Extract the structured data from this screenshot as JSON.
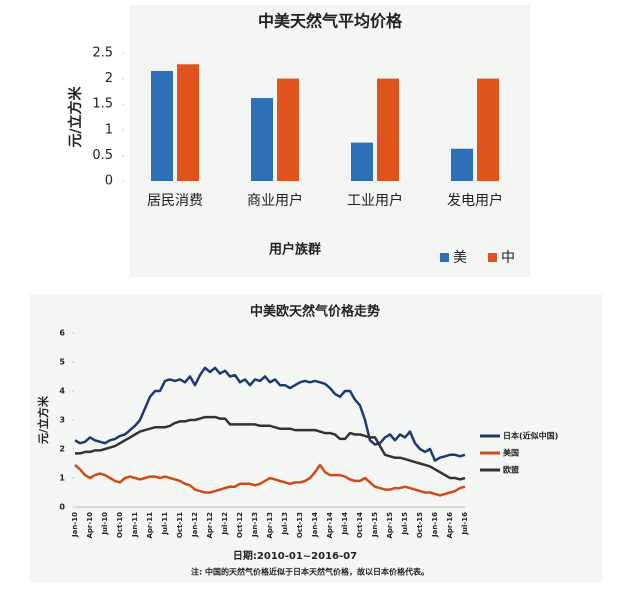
{
  "chart_data": [
    {
      "type": "bar",
      "title": "中美天然气平均价格",
      "x_label": "用户族群",
      "y_label": "元/立方米",
      "categories": [
        "居民消费",
        "商业用户",
        "工业用户",
        "发电用户"
      ],
      "series": [
        {
          "name": "美",
          "color": "#2e6fb7",
          "values": [
            2.15,
            1.62,
            0.75,
            0.63
          ]
        },
        {
          "name": "中",
          "color": "#e0531c",
          "values": [
            2.28,
            2.0,
            2.0,
            2.0
          ]
        }
      ],
      "ylim": [
        0,
        2.5
      ],
      "yticks": [
        0,
        0.5,
        1,
        1.5,
        2,
        2.5
      ],
      "legend": "bottom-right"
    },
    {
      "type": "line",
      "title": "中美欧天然气价格走势",
      "x_label": "日期:2010-01~2016-07",
      "y_label": "元/立方米",
      "note": "注: 中国的天然气价格近似于日本天然气价格，故以日本价格代表。",
      "categories": [
        "Jan-10",
        null,
        null,
        "Apr-10",
        null,
        null,
        "Jul-10",
        null,
        null,
        "Oct-10",
        null,
        null,
        "Jan-11",
        null,
        null,
        "Apr-11",
        null,
        null,
        "Jul-11",
        null,
        null,
        "Oct-11",
        null,
        null,
        "Jan-12",
        null,
        null,
        "Apr-12",
        null,
        null,
        "Jul-12",
        null,
        null,
        "Oct-12",
        null,
        null,
        "Jan-13",
        null,
        null,
        "Apr-13",
        null,
        null,
        "Jul-13",
        null,
        null,
        "Oct-13",
        null,
        null,
        "Jan-14",
        null,
        null,
        "Apr-14",
        null,
        null,
        "Jul-14",
        null,
        null,
        "Oct-14",
        null,
        null,
        "Jan-15",
        null,
        null,
        "Apr-15",
        null,
        null,
        "Jul-15",
        null,
        null,
        "Oct-15",
        null,
        null,
        "Jan-16",
        null,
        null,
        "Apr-16",
        null,
        null,
        "Jul-16"
      ],
      "series": [
        {
          "name": "日本(近似中国)",
          "color": "#1f3a73",
          "values": [
            2.3,
            2.2,
            2.25,
            2.4,
            2.3,
            2.25,
            2.2,
            2.3,
            2.35,
            2.45,
            2.5,
            2.65,
            2.8,
            3.0,
            3.4,
            3.8,
            4.0,
            4.0,
            4.35,
            4.4,
            4.35,
            4.4,
            4.3,
            4.5,
            4.2,
            4.55,
            4.8,
            4.65,
            4.8,
            4.6,
            4.7,
            4.5,
            4.55,
            4.3,
            4.4,
            4.2,
            4.4,
            4.35,
            4.5,
            4.3,
            4.4,
            4.2,
            4.2,
            4.1,
            4.2,
            4.3,
            4.35,
            4.3,
            4.35,
            4.3,
            4.25,
            4.1,
            3.9,
            3.8,
            4.0,
            4.0,
            3.7,
            3.5,
            3.0,
            2.3,
            2.15,
            2.2,
            2.4,
            2.5,
            2.3,
            2.5,
            2.4,
            2.6,
            2.2,
            2.0,
            1.9,
            2.0,
            1.6,
            1.7,
            1.75,
            1.8,
            1.8,
            1.75,
            1.8
          ]
        },
        {
          "name": "美国",
          "color": "#cf4a1a",
          "values": [
            1.45,
            1.3,
            1.1,
            1.0,
            1.1,
            1.15,
            1.1,
            1.0,
            0.9,
            0.85,
            1.0,
            1.05,
            1.0,
            0.95,
            1.0,
            1.05,
            1.05,
            1.0,
            1.05,
            1.0,
            0.95,
            0.9,
            0.8,
            0.75,
            0.6,
            0.55,
            0.5,
            0.5,
            0.55,
            0.6,
            0.65,
            0.7,
            0.7,
            0.8,
            0.8,
            0.8,
            0.75,
            0.8,
            0.9,
            1.0,
            0.95,
            0.9,
            0.85,
            0.8,
            0.85,
            0.85,
            0.9,
            1.0,
            1.2,
            1.45,
            1.2,
            1.1,
            1.1,
            1.1,
            1.05,
            0.95,
            0.9,
            0.9,
            1.0,
            0.85,
            0.7,
            0.65,
            0.6,
            0.6,
            0.65,
            0.65,
            0.7,
            0.65,
            0.6,
            0.55,
            0.5,
            0.5,
            0.45,
            0.4,
            0.45,
            0.5,
            0.55,
            0.65,
            0.7
          ]
        },
        {
          "name": "欧盟",
          "color": "#333333",
          "values": [
            1.85,
            1.85,
            1.9,
            1.9,
            1.95,
            1.95,
            2.0,
            2.05,
            2.1,
            2.2,
            2.3,
            2.4,
            2.5,
            2.6,
            2.65,
            2.7,
            2.75,
            2.75,
            2.75,
            2.8,
            2.9,
            2.95,
            2.95,
            3.0,
            3.0,
            3.05,
            3.1,
            3.1,
            3.1,
            3.05,
            3.05,
            2.85,
            2.85,
            2.85,
            2.85,
            2.85,
            2.85,
            2.8,
            2.8,
            2.8,
            2.75,
            2.7,
            2.7,
            2.7,
            2.65,
            2.65,
            2.65,
            2.65,
            2.65,
            2.6,
            2.55,
            2.55,
            2.5,
            2.35,
            2.35,
            2.55,
            2.5,
            2.5,
            2.45,
            2.4,
            2.4,
            2.1,
            1.8,
            1.75,
            1.7,
            1.7,
            1.65,
            1.6,
            1.55,
            1.5,
            1.45,
            1.4,
            1.3,
            1.2,
            1.1,
            1.0,
            1.0,
            0.95,
            1.0
          ]
        }
      ],
      "ylim": [
        0,
        6
      ],
      "yticks": [
        0,
        1,
        2,
        3,
        4,
        5,
        6
      ],
      "legend": "right"
    }
  ]
}
